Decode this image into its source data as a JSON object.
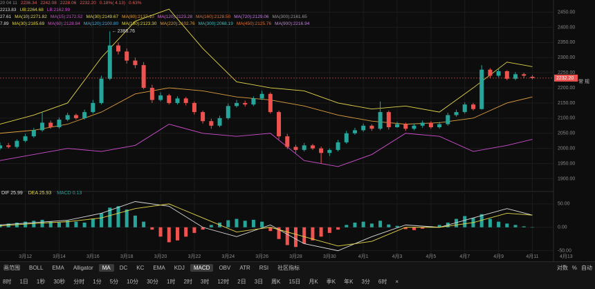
{
  "header": {
    "rows": [
      [
        {
          "text": "20 04 11",
          "color": "#8a8a8a"
        },
        {
          "text": "2236.34",
          "color": "#e06060"
        },
        {
          "text": "2242.08",
          "color": "#e06060"
        },
        {
          "text": "2228.06",
          "color": "#e06060"
        },
        {
          "text": "2232.20",
          "color": "#e06060"
        },
        {
          "text": "0.18%( 4.13)",
          "color": "#e06060"
        },
        {
          "text": "0.63%",
          "color": "#e06060"
        }
      ],
      [
        {
          "text": "2213.83",
          "color": "#dddddd"
        },
        {
          "text": "UB:2264.68",
          "color": "#e6d84a"
        },
        {
          "text": "LB:2162.99",
          "color": "#d24fd2"
        }
      ],
      [
        {
          "text": "27.61",
          "color": "#dddddd"
        },
        {
          "text": "MA(10):2271.82",
          "color": "#e6d84a"
        },
        {
          "text": "MA(15):2172.52",
          "color": "#d24fd2"
        },
        {
          "text": "MA(30):2149.67",
          "color": "#e6d84a"
        },
        {
          "text": "MA(80):2137.10",
          "color": "#e0a040"
        },
        {
          "text": "MA(120):2123.28",
          "color": "#d070d0"
        },
        {
          "text": "MA(160):2128.50",
          "color": "#e07030"
        },
        {
          "text": "MA(720):2129.06",
          "color": "#c080e0"
        },
        {
          "text": "MA(300):2161.65",
          "color": "#999999"
        }
      ],
      [
        {
          "text": "7.89",
          "color": "#dddddd"
        },
        {
          "text": "MA(30):2185.69",
          "color": "#e6d84a"
        },
        {
          "text": "MA(60):2128.84",
          "color": "#d24fd2"
        },
        {
          "text": "MA(120):2100.80",
          "color": "#4fb0e0"
        },
        {
          "text": "MA(180):2123.30",
          "color": "#e6d84a"
        },
        {
          "text": "MA(220):2102.76",
          "color": "#e0a040"
        },
        {
          "text": "MA(300):2068.19",
          "color": "#40c0c0"
        },
        {
          "text": "MA(450):2125.76",
          "color": "#e07030"
        },
        {
          "text": "MA(900):2216.94",
          "color": "#c080e0"
        }
      ]
    ]
  },
  "side_label": "常 规",
  "chart_data": [
    {
      "type": "candlestick",
      "up_color": "#26a69a",
      "down_color": "#ef5350",
      "grid": true,
      "open": [
        2000,
        2010,
        2005,
        2025,
        2040,
        2060,
        2085,
        2070,
        2095,
        2110,
        2100,
        2120,
        2150,
        2230,
        2340,
        2320,
        2290,
        2275,
        2200,
        2160,
        2175,
        2150,
        2165,
        2150,
        2120,
        2090,
        2075,
        2100,
        2140,
        2150,
        2145,
        2165,
        2180,
        2120,
        2040,
        2005,
        1995,
        2010,
        2000,
        1985,
        1995,
        2020,
        2050,
        2060,
        2075,
        2065,
        2120,
        2070,
        2080,
        2065,
        2075,
        2085,
        2070,
        2080,
        2110,
        2120,
        2145,
        2130,
        2260,
        2240,
        2255,
        2230,
        2245,
        2236.34
      ],
      "high": [
        2020,
        2018,
        2030,
        2048,
        2068,
        2120,
        2092,
        2102,
        2118,
        2115,
        2128,
        2160,
        2240,
        2386.76,
        2350,
        2330,
        2300,
        2285,
        2210,
        2185,
        2180,
        2172,
        2170,
        2155,
        2125,
        2098,
        2108,
        2148,
        2160,
        2158,
        2172,
        2190,
        2185,
        2125,
        2048,
        2012,
        2018,
        2015,
        2006,
        2000,
        2028,
        2058,
        2068,
        2082,
        2080,
        2155,
        2125,
        2088,
        2085,
        2082,
        2092,
        2090,
        2088,
        2118,
        2128,
        2152,
        2150,
        2275,
        2265,
        2262,
        2258,
        2252,
        2250,
        2242.08
      ],
      "low": [
        1995,
        2000,
        2000,
        2020,
        2035,
        2055,
        2065,
        2065,
        2090,
        2095,
        2095,
        2115,
        2145,
        2225,
        2310,
        2280,
        2265,
        2195,
        2150,
        2155,
        2145,
        2145,
        2142,
        2112,
        2082,
        2065,
        2070,
        2095,
        2135,
        2138,
        2140,
        2160,
        2115,
        2030,
        1998,
        1985,
        1990,
        1995,
        1950,
        1975,
        1990,
        2015,
        2045,
        2055,
        2058,
        2060,
        2062,
        2068,
        2058,
        2060,
        2068,
        2065,
        2065,
        2075,
        2105,
        2115,
        2125,
        2128,
        2232,
        2235,
        2225,
        2225,
        2232,
        2228.06
      ],
      "close": [
        2010,
        2005,
        2025,
        2040,
        2060,
        2085,
        2070,
        2095,
        2110,
        2100,
        2120,
        2150,
        2230,
        2340,
        2320,
        2290,
        2275,
        2200,
        2160,
        2175,
        2150,
        2165,
        2150,
        2120,
        2090,
        2075,
        2100,
        2140,
        2150,
        2145,
        2165,
        2180,
        2120,
        2040,
        2005,
        1995,
        2010,
        2000,
        1985,
        1995,
        2020,
        2050,
        2060,
        2075,
        2065,
        2120,
        2070,
        2080,
        2065,
        2075,
        2085,
        2070,
        2080,
        2110,
        2120,
        2145,
        2130,
        2260,
        2240,
        2255,
        2230,
        2245,
        2240,
        2232.2
      ],
      "lines": [
        {
          "color": "#e6d84a",
          "x": [
            0,
            4,
            8,
            12,
            16,
            20,
            24,
            28,
            32,
            36,
            40,
            44,
            48,
            52,
            56,
            60,
            63
          ],
          "values": [
            2080,
            2110,
            2150,
            2300,
            2420,
            2460,
            2330,
            2220,
            2200,
            2190,
            2150,
            2130,
            2140,
            2120,
            2200,
            2285,
            2270
          ]
        },
        {
          "color": "#d24fd2",
          "x": [
            0,
            4,
            8,
            12,
            16,
            20,
            24,
            28,
            32,
            36,
            40,
            44,
            48,
            52,
            56,
            60,
            63
          ],
          "values": [
            1960,
            1980,
            2000,
            1990,
            2010,
            2080,
            2050,
            2040,
            2050,
            1960,
            1940,
            1980,
            2050,
            2040,
            1990,
            2010,
            2030
          ]
        },
        {
          "color": "#e0a040",
          "x": [
            0,
            4,
            8,
            12,
            16,
            20,
            24,
            28,
            32,
            36,
            40,
            44,
            48,
            52,
            56,
            60,
            63
          ],
          "values": [
            2050,
            2060,
            2080,
            2120,
            2180,
            2200,
            2190,
            2170,
            2160,
            2140,
            2110,
            2090,
            2080,
            2085,
            2100,
            2150,
            2170
          ]
        }
      ],
      "xlim": [
        0,
        65.5
      ],
      "xticks": [
        {
          "value": 3,
          "label": "3月12"
        },
        {
          "value": 7,
          "label": "3月14"
        },
        {
          "value": 11,
          "label": "3月16"
        },
        {
          "value": 15,
          "label": "3月18"
        },
        {
          "value": 19,
          "label": "3月20"
        },
        {
          "value": 23,
          "label": "3月22"
        },
        {
          "value": 27,
          "label": "3月24"
        },
        {
          "value": 31,
          "label": "3月26"
        },
        {
          "value": 35,
          "label": "3月28"
        },
        {
          "value": 39,
          "label": "3月30"
        },
        {
          "value": 43,
          "label": "4月1"
        },
        {
          "value": 47,
          "label": "4月3"
        },
        {
          "value": 51,
          "label": "4月5"
        },
        {
          "value": 55,
          "label": "4月7"
        },
        {
          "value": 59,
          "label": "4月9"
        },
        {
          "value": 63,
          "label": "4月11"
        },
        {
          "value": 67,
          "label": "4月13"
        }
      ],
      "ylim": [
        1860,
        2490
      ],
      "yticks": [
        {
          "value": 2450,
          "label": "2450.00"
        },
        {
          "value": 2400,
          "label": "2400.00"
        },
        {
          "value": 2350,
          "label": "2350.00"
        },
        {
          "value": 2300,
          "label": "2300.00"
        },
        {
          "value": 2250,
          "label": "2250.00"
        },
        {
          "value": 2200,
          "label": "2200.00"
        },
        {
          "value": 2150,
          "label": "2150.00"
        },
        {
          "value": 2100,
          "label": "2100.00"
        },
        {
          "value": 2050,
          "label": "2050.00"
        },
        {
          "value": 2000,
          "label": "2000.00"
        },
        {
          "value": 1950,
          "label": "1950.00"
        },
        {
          "value": 1900,
          "label": "1900.00"
        }
      ],
      "last_price": {
        "value": 2232.2,
        "label": "2232.20"
      },
      "peak_label": {
        "value": 2386.76,
        "label": "2386.76"
      }
    },
    {
      "type": "bar",
      "up_color": "#26a69a",
      "down_color": "#ef5350",
      "legend": [
        {
          "text": "DIF 25.99",
          "color": "#dddddd"
        },
        {
          "text": "DEA 25.93",
          "color": "#e6d84a"
        },
        {
          "text": "MACD 0.13",
          "color": "#26a69a"
        }
      ],
      "values": [
        6,
        8,
        10,
        12,
        14,
        16,
        12,
        10,
        14,
        12,
        10,
        18,
        30,
        42,
        45,
        38,
        25,
        12,
        -5,
        -20,
        -32,
        -28,
        -20,
        -12,
        -5,
        5,
        10,
        15,
        18,
        14,
        16,
        12,
        -8,
        -25,
        -38,
        -42,
        -35,
        -28,
        -20,
        -12,
        -5,
        5,
        10,
        12,
        8,
        14,
        6,
        3,
        -4,
        -6,
        -3,
        2,
        5,
        10,
        18,
        24,
        20,
        28,
        18,
        12,
        8,
        5,
        2,
        0.13
      ],
      "lines": [
        {
          "color": "#dddddd",
          "x": [
            0,
            4,
            8,
            12,
            16,
            20,
            24,
            28,
            32,
            36,
            40,
            44,
            48,
            52,
            56,
            60,
            63
          ],
          "values": [
            5,
            10,
            15,
            30,
            55,
            45,
            0,
            -20,
            5,
            -35,
            -50,
            -20,
            5,
            0,
            20,
            40,
            26
          ]
        },
        {
          "color": "#e6d84a",
          "x": [
            0,
            4,
            8,
            12,
            16,
            20,
            24,
            28,
            32,
            36,
            40,
            44,
            48,
            52,
            56,
            60,
            63
          ],
          "values": [
            3,
            8,
            12,
            20,
            40,
            50,
            20,
            -10,
            0,
            -20,
            -40,
            -30,
            0,
            0,
            10,
            30,
            25.9
          ]
        }
      ],
      "ylim": [
        -55,
        72
      ],
      "yticks": [
        {
          "value": 50,
          "label": "50.00"
        },
        {
          "value": 0,
          "label": "0.00"
        },
        {
          "value": -50,
          "label": "-50.00"
        }
      ]
    }
  ],
  "toolbar": {
    "row1": [
      {
        "text": "画范围",
        "active": false
      },
      {
        "text": "BOLL",
        "active": false
      },
      {
        "text": "EMA",
        "active": false
      },
      {
        "text": "Alligator",
        "active": false
      },
      {
        "text": "MA",
        "active": true
      },
      {
        "text": "DC",
        "active": false
      },
      {
        "text": "KC",
        "active": false
      },
      {
        "text": "EMA",
        "active": false
      },
      {
        "text": "KDJ",
        "active": false
      },
      {
        "text": "MACD",
        "active": true
      },
      {
        "text": "OBV",
        "active": false
      },
      {
        "text": "ATR",
        "active": false
      },
      {
        "text": "RSI",
        "active": false
      },
      {
        "text": "社区指标",
        "active": false
      }
    ],
    "row1_right": [
      "对数",
      "%",
      "自动"
    ],
    "row2": [
      "8时",
      "1日",
      "1秒",
      "30秒",
      "分时",
      "1分",
      "5分",
      "10分",
      "30分",
      "1时",
      "2时",
      "3时",
      "12时",
      "2日",
      "3日",
      "周K",
      "15日",
      "月K",
      "季K",
      "年K",
      "3分",
      "6时",
      "×"
    ]
  }
}
